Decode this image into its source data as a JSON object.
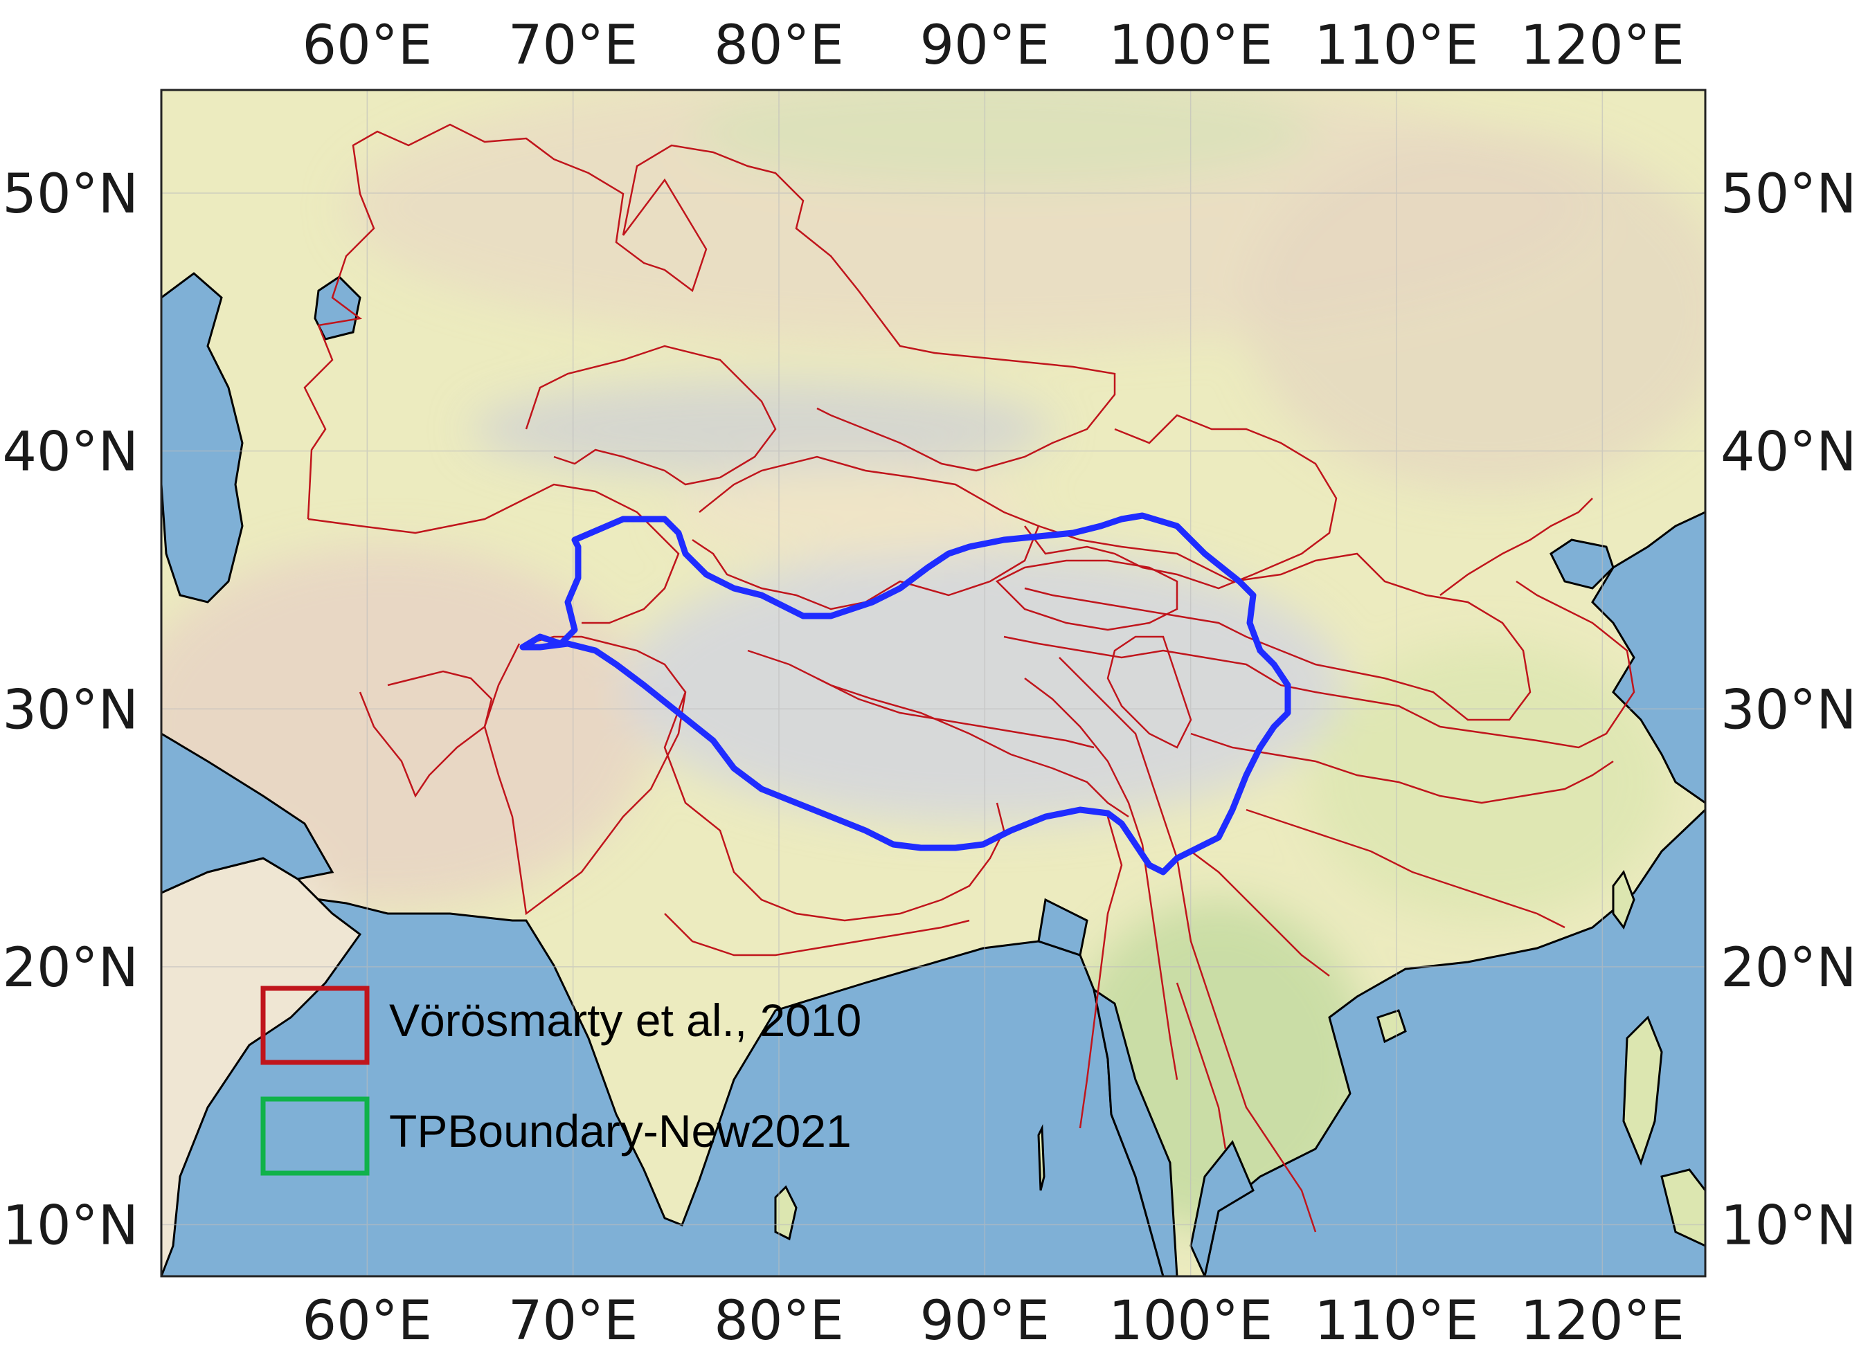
{
  "map": {
    "type": "map",
    "title": "",
    "extent": {
      "lon": [
        50,
        125
      ],
      "lat": [
        8,
        54
      ]
    },
    "x_ticks": [
      {
        "value": 60,
        "label": "60°E"
      },
      {
        "value": 70,
        "label": "70°E"
      },
      {
        "value": 80,
        "label": "80°E"
      },
      {
        "value": 90,
        "label": "90°E"
      },
      {
        "value": 100,
        "label": "100°E"
      },
      {
        "value": 110,
        "label": "110°E"
      },
      {
        "value": 120,
        "label": "120°E"
      }
    ],
    "y_ticks": [
      {
        "value": 50,
        "label": "50°N"
      },
      {
        "value": 40,
        "label": "40°N"
      },
      {
        "value": 30,
        "label": "30°N"
      },
      {
        "value": 20,
        "label": "20°N"
      },
      {
        "value": 10,
        "label": "10°N"
      }
    ],
    "ticks_on_both_sides": true,
    "gridlines": true,
    "basemap": "shaded-relief",
    "legend": {
      "position": "lower-left",
      "items": [
        {
          "label": "Vörösmarty et al., 2010",
          "color": "#c0151c"
        },
        {
          "label": "TPBoundary-New2021",
          "color": "#10b24a"
        }
      ]
    },
    "boundary_outline": {
      "color": "#1f2cff"
    },
    "colors": {
      "ocean": "#7fb0d6",
      "lowland": "#ecebbf",
      "desert": "#eadfc6",
      "highland": "#d9dbdd",
      "forest": "#cfe0a8",
      "coastline": "#000000",
      "basins": "#c0151c"
    }
  }
}
